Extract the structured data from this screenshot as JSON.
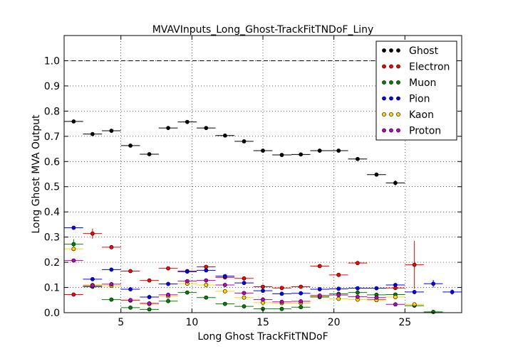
{
  "chart_data": {
    "type": "scatter",
    "title": "MVAVInputs_Long_Ghost-TrackFitTNDoF_Liny",
    "xlabel": "Long Ghost TrackFitTNDoF",
    "ylabel": "Long Ghost MVA Output",
    "xlim": [
      1,
      29
    ],
    "ylim": [
      0.0,
      1.1
    ],
    "xticks": [
      5,
      10,
      15,
      20,
      25
    ],
    "yticks": [
      0.0,
      0.1,
      0.2,
      0.3,
      0.4,
      0.5,
      0.6,
      0.7,
      0.8,
      0.9,
      1.0
    ],
    "xtick_labels": [
      "5",
      "10",
      "15",
      "20",
      "25"
    ],
    "ytick_labels": [
      "0.0",
      "0.1",
      "0.2",
      "0.3",
      "0.4",
      "0.5",
      "0.6",
      "0.7",
      "0.8",
      "0.9",
      "1.0"
    ],
    "bin_half_width": 0.67,
    "reference_line": 1.0,
    "grid": true,
    "legend_position": "top-right",
    "series": [
      {
        "name": "Ghost",
        "color": "#000000",
        "x": [
          1.67,
          3.0,
          4.33,
          5.67,
          7.0,
          8.33,
          9.67,
          11.0,
          12.33,
          13.67,
          15.0,
          16.33,
          17.67,
          19.0,
          20.33,
          21.67,
          23.0,
          24.33
        ],
        "y": [
          0.759,
          0.709,
          0.722,
          0.663,
          0.629,
          0.733,
          0.757,
          0.733,
          0.703,
          0.68,
          0.643,
          0.626,
          0.628,
          0.643,
          0.643,
          0.61,
          0.548,
          0.515
        ],
        "err": [
          0.004,
          0.004,
          0.004,
          0.004,
          0.004,
          0.004,
          0.004,
          0.004,
          0.004,
          0.004,
          0.004,
          0.004,
          0.004,
          0.004,
          0.004,
          0.005,
          0.005,
          0.01
        ]
      },
      {
        "name": "Electron",
        "color": "#ff0000",
        "x": [
          1.67,
          3.0,
          4.33,
          5.67,
          7.0,
          8.33,
          9.67,
          11.0,
          12.33,
          13.67,
          15.0,
          16.33,
          17.67,
          19.0,
          20.33,
          21.67,
          23.0,
          24.33,
          25.67
        ],
        "y": [
          0.072,
          0.314,
          0.26,
          0.165,
          0.128,
          0.176,
          0.165,
          0.182,
          0.14,
          0.136,
          0.103,
          0.098,
          0.103,
          0.185,
          0.15,
          0.197,
          0.052,
          0.098,
          0.19
        ],
        "err": [
          0.005,
          0.02,
          0.006,
          0.005,
          0.005,
          0.005,
          0.005,
          0.005,
          0.005,
          0.005,
          0.005,
          0.005,
          0.005,
          0.006,
          0.006,
          0.006,
          0.006,
          0.008,
          0.095
        ]
      },
      {
        "name": "Muon",
        "color": "#008000",
        "x": [
          1.67,
          3.0,
          4.33,
          5.67,
          7.0,
          8.33,
          9.67,
          11.0,
          12.33,
          13.67,
          15.0,
          16.33,
          17.67,
          19.0,
          20.33,
          21.67,
          23.0,
          24.33,
          25.67,
          27.0
        ],
        "y": [
          0.272,
          0.103,
          0.052,
          0.02,
          0.013,
          0.046,
          0.08,
          0.06,
          0.035,
          0.025,
          0.015,
          0.015,
          0.022,
          0.062,
          0.075,
          0.08,
          0.071,
          0.072,
          0.028,
          0.003
        ],
        "err": [
          0.02,
          0.008,
          0.004,
          0.004,
          0.004,
          0.004,
          0.004,
          0.004,
          0.004,
          0.004,
          0.004,
          0.004,
          0.004,
          0.004,
          0.004,
          0.004,
          0.004,
          0.005,
          0.006,
          0.002
        ]
      },
      {
        "name": "Pion",
        "color": "#0000ff",
        "x": [
          1.67,
          3.0,
          4.33,
          5.67,
          7.0,
          8.33,
          9.67,
          11.0,
          12.33,
          13.67,
          15.0,
          16.33,
          17.67,
          19.0,
          20.33,
          21.67,
          23.0,
          24.33,
          25.67,
          27.0,
          28.33
        ],
        "y": [
          0.337,
          0.133,
          0.171,
          0.093,
          0.062,
          0.114,
          0.163,
          0.168,
          0.145,
          0.118,
          0.087,
          0.075,
          0.077,
          0.093,
          0.095,
          0.097,
          0.097,
          0.11,
          0.082,
          0.115,
          0.082
        ],
        "err": [
          0.004,
          0.004,
          0.004,
          0.004,
          0.004,
          0.004,
          0.004,
          0.004,
          0.004,
          0.004,
          0.004,
          0.004,
          0.004,
          0.004,
          0.004,
          0.004,
          0.004,
          0.006,
          0.008,
          0.015,
          0.01
        ]
      },
      {
        "name": "Kaon",
        "color": "#ffd700",
        "x": [
          1.67,
          3.0,
          4.33,
          5.67,
          7.0,
          8.33,
          9.67,
          11.0,
          12.33,
          13.67,
          15.0,
          16.33,
          17.67,
          19.0,
          20.33,
          21.67,
          23.0,
          24.33,
          25.67
        ],
        "y": [
          0.253,
          0.11,
          0.107,
          0.048,
          0.034,
          0.065,
          0.115,
          0.11,
          0.085,
          0.06,
          0.04,
          0.038,
          0.038,
          0.065,
          0.055,
          0.052,
          0.05,
          0.062,
          0.033
        ],
        "err": [
          0.01,
          0.006,
          0.005,
          0.004,
          0.004,
          0.004,
          0.004,
          0.004,
          0.004,
          0.004,
          0.004,
          0.004,
          0.004,
          0.004,
          0.004,
          0.004,
          0.004,
          0.006,
          0.006
        ]
      },
      {
        "name": "Proton",
        "color": "#bf00bf",
        "x": [
          1.67,
          3.0,
          4.33,
          5.67,
          7.0,
          8.33,
          9.67,
          11.0,
          12.33,
          13.67,
          15.0,
          16.33,
          17.67,
          19.0,
          20.33,
          21.67,
          23.0,
          24.33
        ],
        "y": [
          0.207,
          0.107,
          0.113,
          0.05,
          0.037,
          0.071,
          0.125,
          0.128,
          0.11,
          0.078,
          0.052,
          0.043,
          0.045,
          0.068,
          0.07,
          0.063,
          0.06,
          0.033
        ],
        "err": [
          0.006,
          0.005,
          0.005,
          0.004,
          0.004,
          0.004,
          0.004,
          0.004,
          0.004,
          0.004,
          0.004,
          0.004,
          0.004,
          0.004,
          0.004,
          0.004,
          0.004,
          0.004
        ]
      }
    ]
  }
}
